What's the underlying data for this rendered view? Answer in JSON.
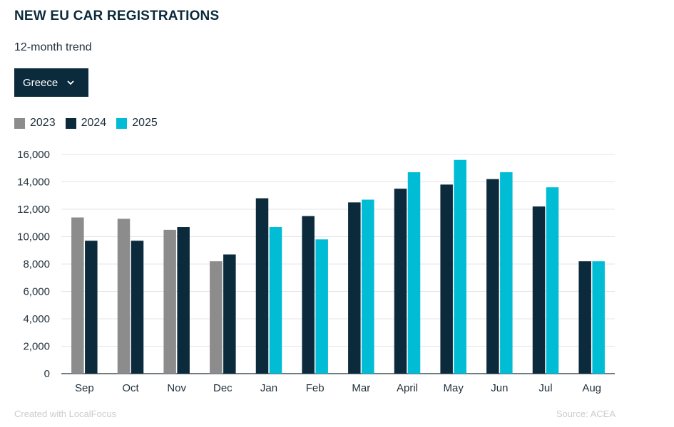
{
  "header": {
    "title": "NEW EU CAR REGISTRATIONS",
    "subtitle": "12-month trend"
  },
  "filter": {
    "selected": "Greece",
    "icon": "chevron-down-icon"
  },
  "legend": [
    {
      "label": "2023",
      "color": "#8c8c8c"
    },
    {
      "label": "2024",
      "color": "#0b2a3b"
    },
    {
      "label": "2025",
      "color": "#00bcd4"
    }
  ],
  "footer": {
    "credit": "Created with LocalFocus",
    "source": "Source:  ACEA"
  },
  "chart_data": {
    "type": "bar",
    "categories": [
      "Sep",
      "Oct",
      "Nov",
      "Dec",
      "Jan",
      "Feb",
      "Mar",
      "April",
      "May",
      "Jun",
      "Jul",
      "Aug"
    ],
    "series": [
      {
        "name": "2023",
        "color": "#8c8c8c",
        "values": [
          11400,
          11300,
          10500,
          8200,
          null,
          null,
          null,
          null,
          null,
          null,
          null,
          null
        ]
      },
      {
        "name": "2024",
        "color": "#0b2a3b",
        "values": [
          9700,
          9700,
          10700,
          8700,
          12800,
          11500,
          12500,
          13500,
          13800,
          14200,
          12200,
          8200
        ]
      },
      {
        "name": "2025",
        "color": "#00bcd4",
        "values": [
          null,
          null,
          null,
          null,
          10700,
          9800,
          12700,
          14700,
          15600,
          14700,
          13600,
          8200
        ]
      }
    ],
    "ylim": [
      0,
      16000
    ],
    "yticks": [
      "0",
      "2,000",
      "4,000",
      "6,000",
      "8,000",
      "10,000",
      "12,000",
      "14,000",
      "16,000"
    ],
    "ytick_values": [
      0,
      2000,
      4000,
      6000,
      8000,
      10000,
      12000,
      14000,
      16000
    ],
    "grid": true,
    "legend_position": "top-left"
  }
}
